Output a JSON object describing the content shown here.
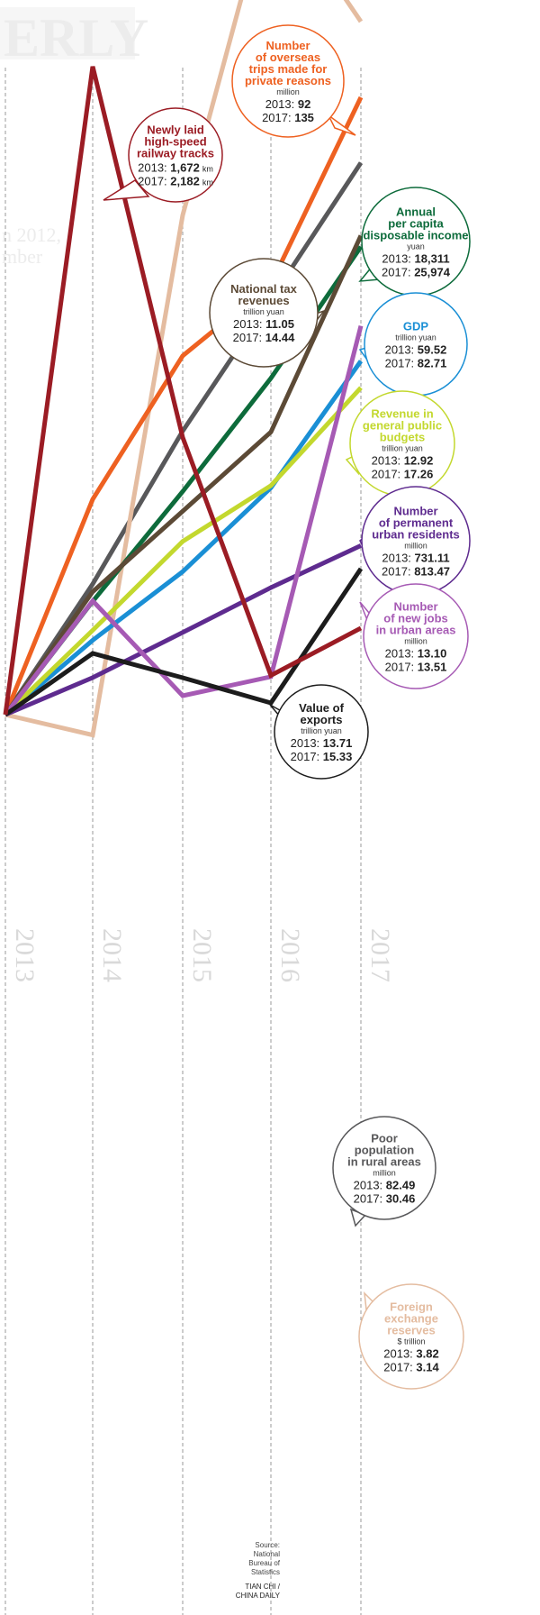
{
  "chart_data": {
    "type": "line",
    "x": [
      "2013",
      "2014",
      "2015",
      "2016",
      "2017"
    ],
    "series": [
      {
        "key": "rail",
        "name": "Newly laid high-speed railway tracks",
        "unit": "km",
        "color": "#9b1c24",
        "values": [
          1672,
          5491,
          3306,
          1903,
          2182
        ],
        "v2013": "1,672",
        "v2017": "2,182"
      },
      {
        "key": "trips",
        "name": "Number of overseas trips made for private reasons",
        "unit": "million",
        "color": "#ee6121",
        "values": [
          92,
          107,
          117,
          122,
          135
        ],
        "v2013": "92",
        "v2017": "135"
      },
      {
        "key": "income",
        "name": "Annual per capita disposable income",
        "unit": "yuan",
        "color": "#0d6b3b",
        "values": [
          18311,
          20167,
          21966,
          23821,
          25974
        ],
        "v2013": "18,311",
        "v2017": "25,974"
      },
      {
        "key": "tax",
        "name": "National tax revenues",
        "unit": "trillion yuan",
        "color": "#5c4a36",
        "values": [
          11.05,
          11.92,
          12.49,
          13.05,
          14.44
        ],
        "v2013": "11.05",
        "v2017": "14.44"
      },
      {
        "key": "gdp",
        "name": "GDP",
        "unit": "trillion yuan",
        "color": "#1a8fd5",
        "values": [
          59.52,
          64.4,
          68.9,
          74.4,
          82.71
        ],
        "v2013": "59.52",
        "v2017": "82.71"
      },
      {
        "key": "revenue",
        "name": "Revenue in general public budgets",
        "unit": "trillion yuan",
        "color": "#c3d82e",
        "values": [
          12.92,
          14.04,
          15.22,
          15.96,
          17.26
        ],
        "v2013": "12.92",
        "v2017": "17.26"
      },
      {
        "key": "urban",
        "name": "Number of permanent urban residents",
        "unit": "million",
        "color": "#5e2b8f",
        "values": [
          731.11,
          749.16,
          771.16,
          793.0,
          813.47
        ],
        "v2013": "731.11",
        "v2017": "813.47"
      },
      {
        "key": "jobs",
        "name": "Number of new jobs in urban areas",
        "unit": "million",
        "color": "#a65ab4",
        "values": [
          13.1,
          13.22,
          13.12,
          13.14,
          13.51
        ],
        "v2013": "13.10",
        "v2017": "13.51"
      },
      {
        "key": "exports",
        "name": "Value of exports",
        "unit": "trillion yuan",
        "color": "#1c1c1c",
        "values": [
          13.71,
          14.39,
          14.12,
          13.84,
          15.33
        ],
        "v2013": "13.71",
        "v2017": "15.33"
      },
      {
        "key": "poor",
        "name": "Poor population in rural areas",
        "unit": "million",
        "color": "#58585a",
        "values": [
          82.49,
          70.17,
          55.75,
          43.35,
          30.46
        ],
        "v2013": "82.49",
        "v2017": "30.46"
      },
      {
        "key": "forex",
        "name": "Foreign exchange reserves",
        "unit": "$ trillion",
        "color": "#e4bca0",
        "values": [
          3.82,
          3.84,
          3.33,
          3.01,
          3.14
        ],
        "v2013": "3.82",
        "v2017": "3.14"
      }
    ]
  },
  "bubbles": [
    {
      "key": "rail",
      "title": [
        "Newly laid",
        "high-speed",
        "railway tracks"
      ],
      "unit": "",
      "v2013": "1,672",
      "v2017": "2,182",
      "inline_unit": "km"
    },
    {
      "key": "trips",
      "title": [
        "Number",
        "of overseas",
        "trips made for",
        "private reasons"
      ],
      "unit": "million",
      "v2013": "92",
      "v2017": "135",
      "inline_unit": ""
    },
    {
      "key": "income",
      "title": [
        "Annual",
        "per capita",
        "disposable income"
      ],
      "unit": "yuan",
      "v2013": "18,311",
      "v2017": "25,974",
      "inline_unit": ""
    },
    {
      "key": "tax",
      "title": [
        "National tax",
        "revenues"
      ],
      "unit": "trillion yuan",
      "v2013": "11.05",
      "v2017": "14.44",
      "inline_unit": ""
    },
    {
      "key": "gdp",
      "title": [
        "GDP"
      ],
      "unit": "trillion yuan",
      "v2013": "59.52",
      "v2017": "82.71",
      "inline_unit": ""
    },
    {
      "key": "revenue",
      "title": [
        "Revenue in",
        "general public",
        "budgets"
      ],
      "unit": "trillion yuan",
      "v2013": "12.92",
      "v2017": "17.26",
      "inline_unit": ""
    },
    {
      "key": "urban",
      "title": [
        "Number",
        "of permanent",
        "urban residents"
      ],
      "unit": "million",
      "v2013": "731.11",
      "v2017": "813.47",
      "inline_unit": ""
    },
    {
      "key": "jobs",
      "title": [
        "Number",
        "of new jobs",
        "in urban areas"
      ],
      "unit": "million",
      "v2013": "13.10",
      "v2017": "13.51",
      "inline_unit": ""
    },
    {
      "key": "exports",
      "title": [
        "Value of",
        "exports"
      ],
      "unit": "trillion yuan",
      "v2013": "13.71",
      "v2017": "15.33",
      "inline_unit": ""
    },
    {
      "key": "poor",
      "title": [
        "Poor",
        "population",
        "in rural areas"
      ],
      "unit": "million",
      "v2013": "82.49",
      "v2017": "30.46",
      "inline_unit": ""
    },
    {
      "key": "forex",
      "title": [
        "Foreign",
        "exchange",
        "reserves"
      ],
      "unit": "$ trillion",
      "v2013": "3.82",
      "v2017": "3.14",
      "inline_unit": ""
    }
  ],
  "labels": {
    "year_prefix_2013": "2013:",
    "year_prefix_2017": "2017:"
  },
  "source": [
    "Source:",
    "National",
    "Bureau of",
    "Statistics"
  ],
  "credit": [
    "TIAN CHI /",
    "CHINA DAILY"
  ]
}
